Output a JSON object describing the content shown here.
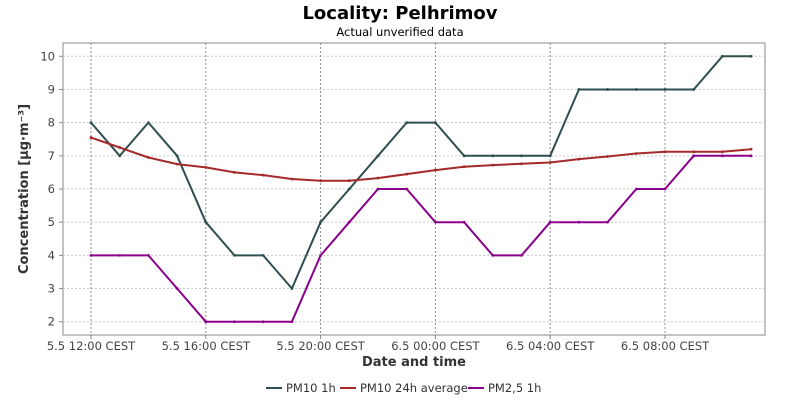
{
  "chart_data": {
    "type": "line",
    "title": "Locality: Pelhrimov",
    "subtitle": "Actual unverified data",
    "xlabel": "Date and time",
    "ylabel": "Concentration [µg·m⁻³]",
    "ylim": [
      1.6,
      10.4
    ],
    "yticks": [
      2,
      3,
      4,
      5,
      6,
      7,
      8,
      9,
      10
    ],
    "x": [
      "5.5 12:00",
      "5.5 13:00",
      "5.5 14:00",
      "5.5 15:00",
      "5.5 16:00",
      "5.5 17:00",
      "5.5 18:00",
      "5.5 19:00",
      "5.5 20:00",
      "5.5 21:00",
      "5.5 22:00",
      "5.5 23:00",
      "6.5 00:00",
      "6.5 01:00",
      "6.5 02:00",
      "6.5 03:00",
      "6.5 04:00",
      "6.5 05:00",
      "6.5 06:00",
      "6.5 07:00",
      "6.5 08:00",
      "6.5 09:00",
      "6.5 10:00",
      "6.5 11:00"
    ],
    "xticks": [
      "5.5 12:00 CEST",
      "5.5 16:00 CEST",
      "5.5 20:00 CEST",
      "6.5 00:00 CEST",
      "6.5 04:00 CEST",
      "6.5 08:00 CEST"
    ],
    "grid": true,
    "legend_position": "bottom",
    "series": [
      {
        "name": "PM10 1h",
        "color": "#2f4f4f",
        "values": [
          8,
          7,
          8,
          7,
          5,
          4,
          4,
          3,
          5,
          6,
          7,
          8,
          8,
          7,
          7,
          7,
          7,
          9,
          9,
          9,
          9,
          9,
          10,
          10
        ]
      },
      {
        "name": "PM10 24h average",
        "color": "#a52a2a",
        "values": [
          7.55,
          7.25,
          6.95,
          6.75,
          6.65,
          6.5,
          6.42,
          6.3,
          6.25,
          6.25,
          6.33,
          6.45,
          6.57,
          6.67,
          6.72,
          6.76,
          6.8,
          6.9,
          6.98,
          7.07,
          7.12,
          7.12,
          7.12,
          7.2
        ]
      },
      {
        "name": "PM2,5 1h",
        "color": "#8b008b",
        "values": [
          4,
          4,
          4,
          3,
          2,
          2,
          2,
          2,
          4,
          5,
          6,
          6,
          5,
          5,
          4,
          4,
          5,
          5,
          5,
          6,
          6,
          7,
          7,
          7
        ]
      }
    ]
  }
}
